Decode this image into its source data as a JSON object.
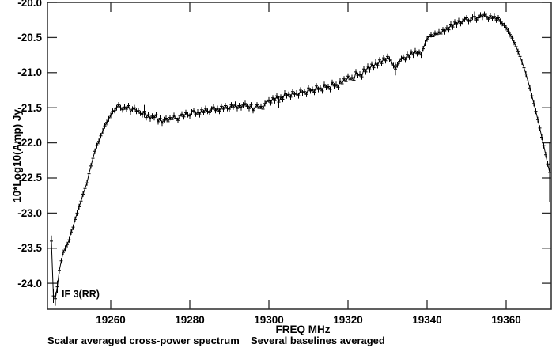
{
  "figure": {
    "background": "#ffffff",
    "frame_color": "#2b2b2b",
    "data_color": "#000000"
  },
  "chart_data": {
    "type": "line",
    "title": "Scalar averaged cross-power spectrum   Several baselines averaged",
    "caption": {
      "left": "Scalar averaged cross-power spectrum",
      "right": "Several baselines averaged"
    },
    "xlabel": "FREQ   MHz",
    "ylabel": "10*Log10(Amp) Jy",
    "annotation": "IF 3(RR)",
    "grid": false,
    "legend": "none",
    "marker": "plus-with-vertical-error-bar",
    "xlim": [
      19244.0,
      19371.4
    ],
    "ylim": [
      -24.37,
      -20.0
    ],
    "x_ticks": [
      19260,
      19280,
      19300,
      19320,
      19340,
      19360
    ],
    "x_tick_labels": [
      "19260",
      "19280",
      "19300",
      "19320",
      "19340",
      "19360"
    ],
    "y_ticks": [
      -20.0,
      -20.5,
      -21.0,
      -21.5,
      -22.0,
      -22.5,
      -23.0,
      -23.5,
      -24.0
    ],
    "y_tick_labels": [
      "-20.0",
      "-20.5",
      "-21.0",
      "-21.5",
      "-22.0",
      "-22.5",
      "-23.0",
      "-23.5",
      "-24.0"
    ],
    "f_start": 19245.0,
    "f_step": 0.5,
    "default_yerr": 0.04,
    "yerr_overrides": {
      "0": 0.08,
      "1": 0.1,
      "2": 0.1,
      "3": 0.09,
      "47": 0.09,
      "115": 0.08,
      "174": 0.09,
      "214": 0.07,
      "252": 0.43
    },
    "values": [
      -23.4,
      -24.18,
      -24.22,
      -24.05,
      -23.82,
      -23.68,
      -23.56,
      -23.5,
      -23.45,
      -23.38,
      -23.27,
      -23.2,
      -23.09,
      -23.0,
      -22.91,
      -22.83,
      -22.73,
      -22.65,
      -22.57,
      -22.44,
      -22.33,
      -22.22,
      -22.12,
      -22.04,
      -21.98,
      -21.9,
      -21.83,
      -21.76,
      -21.71,
      -21.66,
      -21.61,
      -21.55,
      -21.54,
      -21.5,
      -21.46,
      -21.5,
      -21.53,
      -21.49,
      -21.52,
      -21.47,
      -21.56,
      -21.52,
      -21.5,
      -21.55,
      -21.54,
      -21.58,
      -21.6,
      -21.55,
      -21.64,
      -21.6,
      -21.66,
      -21.62,
      -21.64,
      -21.6,
      -21.7,
      -21.65,
      -21.72,
      -21.67,
      -21.65,
      -21.7,
      -21.64,
      -21.67,
      -21.61,
      -21.65,
      -21.68,
      -21.62,
      -21.59,
      -21.63,
      -21.57,
      -21.6,
      -21.62,
      -21.56,
      -21.54,
      -21.59,
      -21.56,
      -21.6,
      -21.53,
      -21.57,
      -21.51,
      -21.55,
      -21.57,
      -21.52,
      -21.49,
      -21.54,
      -21.51,
      -21.55,
      -21.48,
      -21.52,
      -21.47,
      -21.51,
      -21.52,
      -21.46,
      -21.49,
      -21.45,
      -21.51,
      -21.47,
      -21.5,
      -21.46,
      -21.44,
      -21.48,
      -21.51,
      -21.46,
      -21.54,
      -21.5,
      -21.46,
      -21.51,
      -21.48,
      -21.52,
      -21.44,
      -21.41,
      -21.39,
      -21.43,
      -21.36,
      -21.4,
      -21.33,
      -21.42,
      -21.35,
      -21.38,
      -21.29,
      -21.33,
      -21.31,
      -21.35,
      -21.27,
      -21.31,
      -21.29,
      -21.33,
      -21.25,
      -21.29,
      -21.27,
      -21.31,
      -21.22,
      -21.26,
      -21.24,
      -21.28,
      -21.19,
      -21.24,
      -21.22,
      -21.26,
      -21.17,
      -21.21,
      -21.2,
      -21.24,
      -21.14,
      -21.19,
      -21.17,
      -21.21,
      -21.12,
      -21.16,
      -21.09,
      -21.13,
      -21.05,
      -21.1,
      -21.07,
      -21.11,
      -20.99,
      -21.04,
      -21.02,
      -21.06,
      -20.95,
      -20.99,
      -20.91,
      -20.96,
      -20.88,
      -20.93,
      -20.85,
      -20.9,
      -20.82,
      -20.87,
      -20.79,
      -20.83,
      -20.77,
      -20.81,
      -20.85,
      -20.9,
      -20.95,
      -20.89,
      -20.84,
      -20.8,
      -20.78,
      -20.82,
      -20.74,
      -20.78,
      -20.71,
      -20.75,
      -20.69,
      -20.73,
      -20.71,
      -20.75,
      -20.66,
      -20.58,
      -20.52,
      -20.49,
      -20.46,
      -20.49,
      -20.44,
      -20.46,
      -20.42,
      -20.45,
      -20.39,
      -20.42,
      -20.36,
      -20.39,
      -20.31,
      -20.35,
      -20.28,
      -20.32,
      -20.26,
      -20.3,
      -20.27,
      -20.24,
      -20.22,
      -20.27,
      -20.25,
      -20.21,
      -20.2,
      -20.25,
      -20.22,
      -20.18,
      -20.21,
      -20.17,
      -20.2,
      -20.24,
      -20.19,
      -20.23,
      -20.2,
      -20.25,
      -20.22,
      -20.27,
      -20.3,
      -20.33,
      -20.36,
      -20.41,
      -20.46,
      -20.51,
      -20.57,
      -20.63,
      -20.7,
      -20.77,
      -20.85,
      -20.93,
      -21.02,
      -21.12,
      -21.22,
      -21.33,
      -21.44,
      -21.55,
      -21.67,
      -21.79,
      -21.92,
      -22.04,
      -22.17,
      -22.3,
      -22.42
    ]
  }
}
